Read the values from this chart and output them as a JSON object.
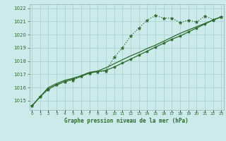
{
  "title": "Graphe pression niveau de la mer (hPa)",
  "bg_color": "#cceaea",
  "grid_color": "#aad4d4",
  "line_color": "#2d6b2d",
  "x_labels": [
    "0",
    "1",
    "2",
    "3",
    "4",
    "5",
    "6",
    "7",
    "8",
    "9",
    "10",
    "11",
    "12",
    "13",
    "14",
    "15",
    "16",
    "17",
    "18",
    "19",
    "20",
    "21",
    "22",
    "23"
  ],
  "ylim": [
    1014.3,
    1022.3
  ],
  "yticks": [
    1015,
    1016,
    1017,
    1018,
    1019,
    1020,
    1021,
    1022
  ],
  "series1": [
    1014.6,
    1015.3,
    1015.85,
    1016.2,
    1016.45,
    1016.55,
    1016.85,
    1017.1,
    1017.2,
    1017.25,
    1018.3,
    1019.0,
    1019.9,
    1020.5,
    1021.1,
    1021.45,
    1021.25,
    1021.25,
    1020.9,
    1021.1,
    1020.95,
    1021.4,
    1021.15,
    1021.35
  ],
  "series2": [
    1014.6,
    1015.3,
    1015.9,
    1016.2,
    1016.45,
    1016.65,
    1016.85,
    1017.1,
    1017.2,
    1017.3,
    1017.55,
    1017.85,
    1018.15,
    1018.45,
    1018.75,
    1019.05,
    1019.35,
    1019.65,
    1019.9,
    1020.2,
    1020.5,
    1020.8,
    1021.1,
    1021.35
  ],
  "series3": [
    1014.6,
    1015.3,
    1016.0,
    1016.3,
    1016.55,
    1016.7,
    1016.9,
    1017.15,
    1017.25,
    1017.5,
    1017.8,
    1018.1,
    1018.4,
    1018.65,
    1018.95,
    1019.2,
    1019.5,
    1019.8,
    1020.1,
    1020.35,
    1020.6,
    1020.85,
    1021.1,
    1021.35
  ]
}
